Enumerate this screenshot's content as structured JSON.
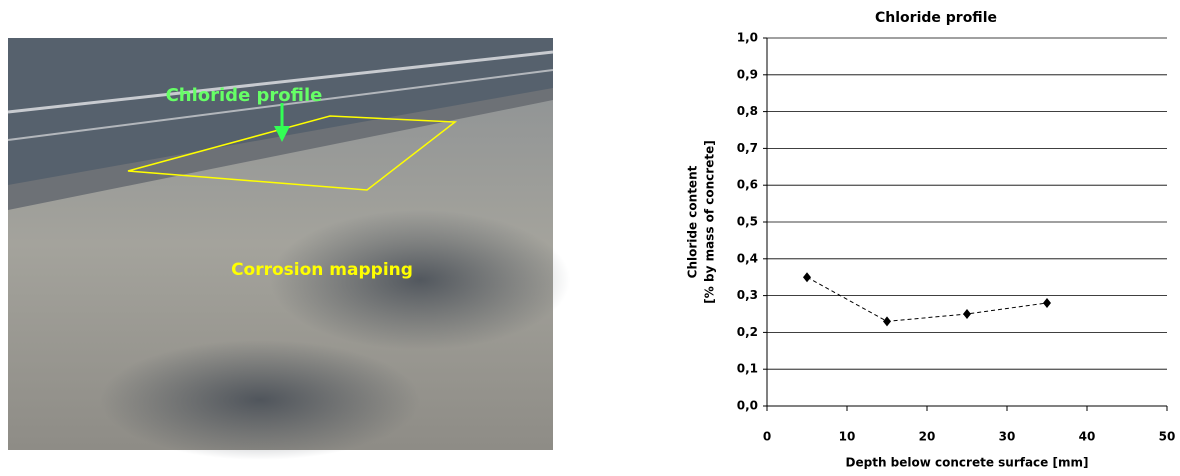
{
  "photo": {
    "labels": [
      "Chloride profile",
      "Corrosion mapping"
    ]
  },
  "chart_data": {
    "type": "line",
    "title": "Chloride profile",
    "xlabel": "Depth below concrete surface [mm]",
    "ylabel": [
      "Chloride content",
      "[% by mass of concrete]"
    ],
    "x": [
      5,
      15,
      25,
      35
    ],
    "values": [
      0.35,
      0.23,
      0.25,
      0.28
    ],
    "color": "#000000",
    "xlim": [
      0,
      50
    ],
    "xticks": [
      0,
      10,
      20,
      30,
      40,
      50
    ],
    "ylim": [
      0,
      1
    ],
    "yticks": [
      {
        "value": 0,
        "label": "0,0"
      },
      {
        "value": 0.1,
        "label": "0,1"
      },
      {
        "value": 0.2,
        "label": "0,2"
      },
      {
        "value": 0.3,
        "label": "0,3"
      },
      {
        "value": 0.4,
        "label": "0,4"
      },
      {
        "value": 0.5,
        "label": "0,5"
      },
      {
        "value": 0.6,
        "label": "0,6"
      },
      {
        "value": 0.7,
        "label": "0,7"
      },
      {
        "value": 0.8,
        "label": "0,8"
      },
      {
        "value": 0.9,
        "label": "0,9"
      },
      {
        "value": 1,
        "label": "1,0"
      }
    ],
    "grid": true
  }
}
